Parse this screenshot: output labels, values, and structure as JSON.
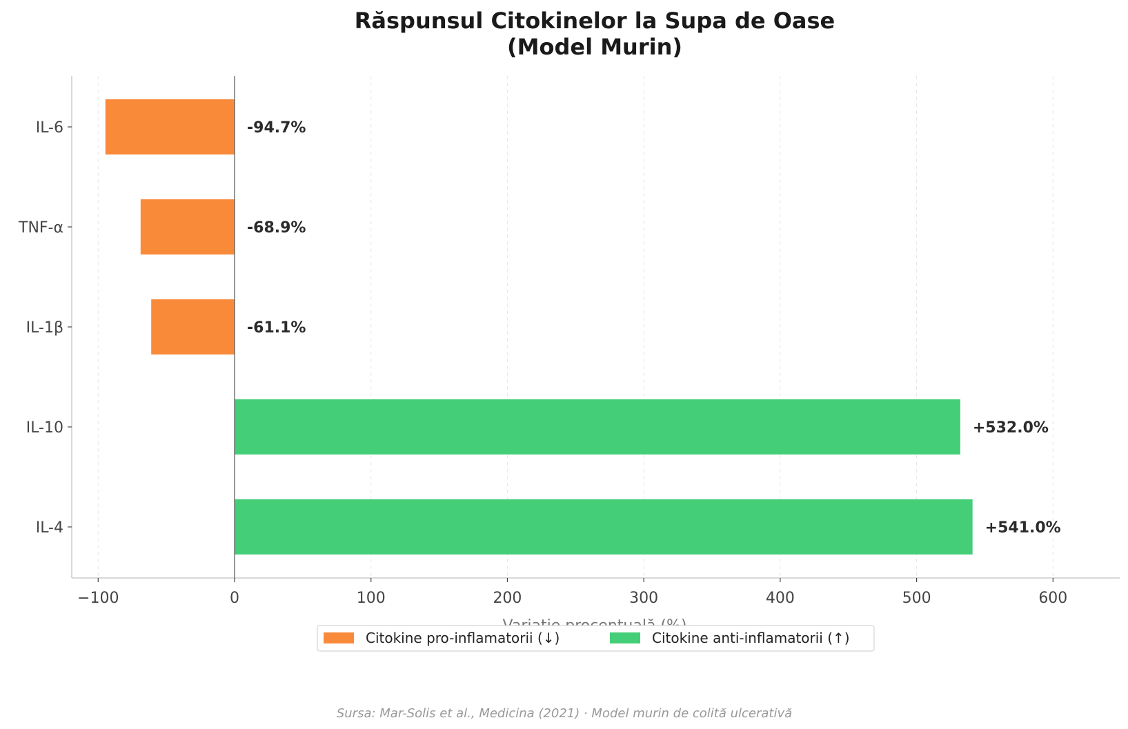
{
  "chart_data": {
    "type": "bar",
    "orientation": "horizontal",
    "title_line1": "Răspunsul Citokinelor la Supa de Oase",
    "title_line2": "(Model Murin)",
    "categories": [
      "IL-6",
      "TNF-α",
      "IL-1β",
      "IL-10",
      "IL-4"
    ],
    "values": [
      -94.7,
      -68.9,
      -61.1,
      532.0,
      541.0
    ],
    "value_labels": [
      "-94.7%",
      "-68.9%",
      "-61.1%",
      "+532.0%",
      "+541.0%"
    ],
    "groups": [
      "pro",
      "pro",
      "pro",
      "anti",
      "anti"
    ],
    "xlabel": "Variație procentuală (%)",
    "xlim": [
      -120,
      650
    ],
    "xticks": [
      -100,
      0,
      100,
      200,
      300,
      400,
      500,
      600
    ],
    "xtick_labels": [
      "−100",
      "0",
      "100",
      "200",
      "300",
      "400",
      "500",
      "600"
    ],
    "grid": "x-dashed",
    "legend_position": "bottom-center",
    "legend": [
      {
        "label": "Citokine pro-inflamatorii (↓)",
        "color": "#f98a3a"
      },
      {
        "label": "Citokine anti-inflamatorii (↑)",
        "color": "#45ce78"
      }
    ],
    "colors": {
      "pro": "#f98a3a",
      "anti": "#45ce78"
    },
    "source": "Sursa: Mar-Solis et al., Medicina (2021) · Model murin de colită ulcerativă"
  }
}
